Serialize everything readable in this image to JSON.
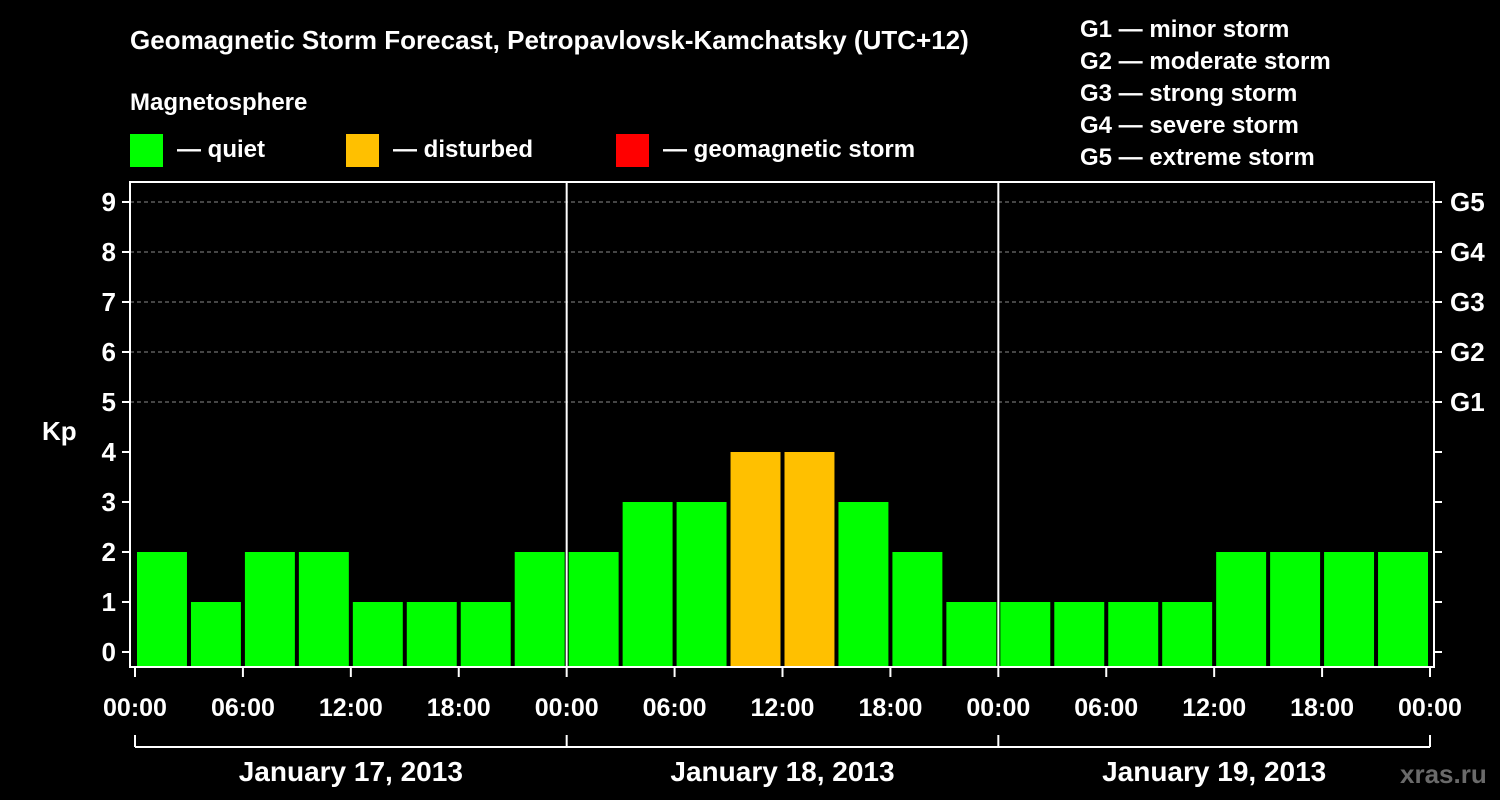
{
  "chart_data": {
    "type": "bar",
    "title": "Geomagnetic Storm Forecast, Petropavlovsk-Kamchatsky (UTC+12)",
    "ylabel": "Kp",
    "ylim": [
      0,
      9
    ],
    "y_ticks": [
      "0",
      "1",
      "2",
      "3",
      "4",
      "5",
      "6",
      "7",
      "8",
      "9"
    ],
    "right_axis_ticks": [
      {
        "kp": 5,
        "label": "G1"
      },
      {
        "kp": 6,
        "label": "G2"
      },
      {
        "kp": 7,
        "label": "G3"
      },
      {
        "kp": 8,
        "label": "G4"
      },
      {
        "kp": 9,
        "label": "G5"
      }
    ],
    "storm_scale": [
      "G1 — minor storm",
      "G2 — moderate storm",
      "G3 — strong storm",
      "G4 — severe storm",
      "G5 — extreme storm"
    ],
    "legend": {
      "title": "Magnetosphere",
      "items": [
        {
          "label": "— quiet",
          "color": "#00ff00"
        },
        {
          "label": "— disturbed",
          "color": "#ffc000"
        },
        {
          "label": "— geomagnetic storm",
          "color": "#ff0000"
        }
      ]
    },
    "x_tick_labels": [
      "00:00",
      "06:00",
      "12:00",
      "18:00",
      "00:00",
      "06:00",
      "12:00",
      "18:00",
      "00:00",
      "06:00",
      "12:00",
      "18:00",
      "00:00"
    ],
    "days": [
      "January 17, 2013",
      "January 18, 2013",
      "January 19, 2013"
    ],
    "values": [
      2,
      1,
      2,
      2,
      1,
      1,
      1,
      2,
      2,
      3,
      3,
      4,
      4,
      3,
      2,
      1,
      1,
      1,
      1,
      1,
      2,
      2,
      2,
      2
    ],
    "status": [
      "quiet",
      "quiet",
      "quiet",
      "quiet",
      "quiet",
      "quiet",
      "quiet",
      "quiet",
      "quiet",
      "quiet",
      "quiet",
      "disturbed",
      "disturbed",
      "quiet",
      "quiet",
      "quiet",
      "quiet",
      "quiet",
      "quiet",
      "quiet",
      "quiet",
      "quiet",
      "quiet",
      "quiet"
    ],
    "status_colors": {
      "quiet": "#00ff00",
      "disturbed": "#ffc000",
      "storm": "#ff0000"
    },
    "watermark": "xras.ru"
  }
}
